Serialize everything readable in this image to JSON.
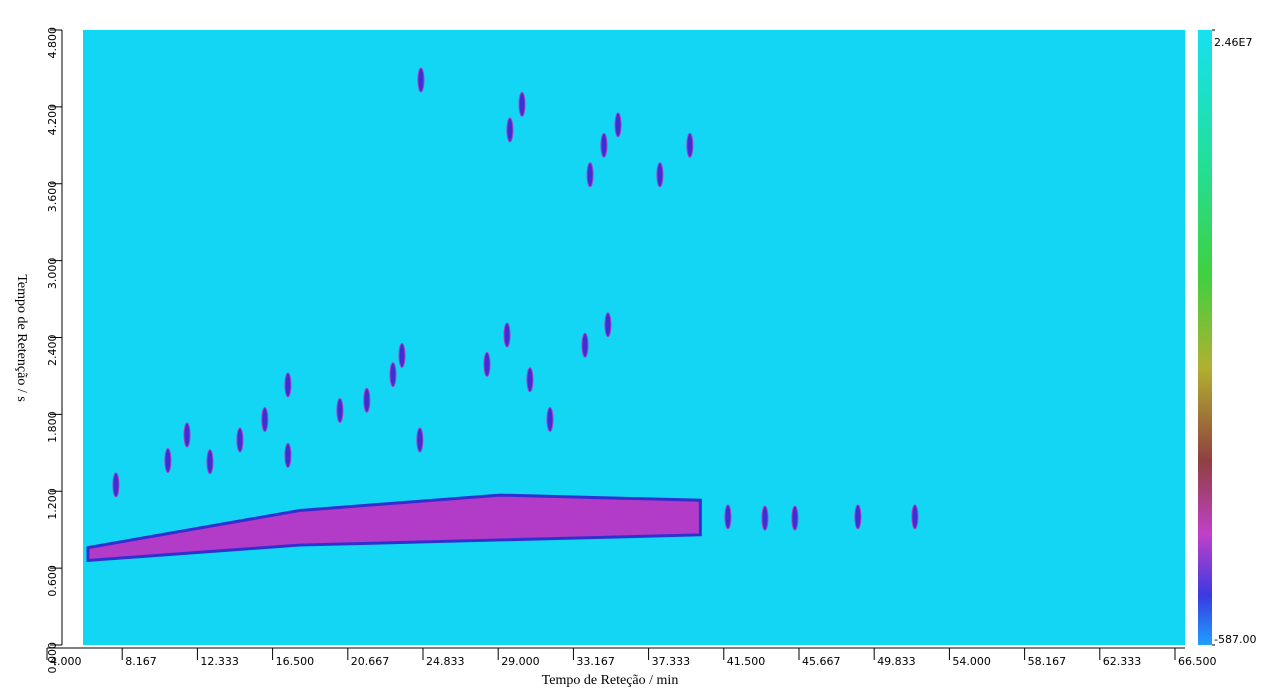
{
  "chart_data": {
    "type": "contour2d",
    "xlabel": "Tempo de Reteção / min",
    "ylabel": "Tempo de Retenção / s",
    "xlim": [
      4.0,
      66.5
    ],
    "xticks": [
      {
        "value": 4.0,
        "label": "4.000"
      },
      {
        "value": 8.167,
        "label": "8.167"
      },
      {
        "value": 12.333,
        "label": "12.333"
      },
      {
        "value": 16.5,
        "label": "16.500"
      },
      {
        "value": 20.667,
        "label": "20.667"
      },
      {
        "value": 24.833,
        "label": "24.833"
      },
      {
        "value": 29.0,
        "label": "29.000"
      },
      {
        "value": 33.167,
        "label": "33.167"
      },
      {
        "value": 37.333,
        "label": "37.333"
      },
      {
        "value": 41.5,
        "label": "41.500"
      },
      {
        "value": 45.667,
        "label": "45.667"
      },
      {
        "value": 49.833,
        "label": "49.833"
      },
      {
        "value": 54.0,
        "label": "54.000"
      },
      {
        "value": 58.167,
        "label": "58.167"
      },
      {
        "value": 62.333,
        "label": "62.333"
      },
      {
        "value": 66.5,
        "label": "66.500"
      }
    ],
    "ylim": [
      0,
      4.8
    ],
    "yticks": [
      {
        "value": 0,
        "label": "0.000"
      },
      {
        "value": 0.6,
        "label": "0.600"
      },
      {
        "value": 1.2,
        "label": "1.200"
      },
      {
        "value": 1.8,
        "label": "1.800"
      },
      {
        "value": 2.4,
        "label": "2.400"
      },
      {
        "value": 3.0,
        "label": "3.000"
      },
      {
        "value": 3.6,
        "label": "3.600"
      },
      {
        "value": 4.2,
        "label": "4.200"
      },
      {
        "value": 4.8,
        "label": "4.800"
      }
    ],
    "colorbar": {
      "ticks": [
        {
          "value": -587,
          "label": "-587.00"
        },
        {
          "value": 24600000,
          "label": "2.46E7"
        }
      ]
    },
    "band": {
      "color": "#b23cc8",
      "x": [
        6.27,
        18.0,
        29.1,
        40.2
      ],
      "lower": [
        0.66,
        0.78,
        0.82,
        0.86
      ],
      "upper": [
        0.76,
        1.05,
        1.17,
        1.13
      ]
    },
    "peaks": {
      "color": "#3b30d6",
      "x": [
        24.72,
        30.32,
        29.65,
        34.86,
        34.09,
        35.64,
        29.49,
        23.67,
        23.17,
        28.38,
        17.35,
        16.07,
        14.69,
        11.76,
        10.7,
        7.82,
        13.03,
        17.35,
        20.23,
        21.72,
        24.66,
        30.76,
        31.87,
        35.08,
        33.81,
        37.96,
        39.62,
        41.73,
        43.78,
        45.44,
        48.93,
        52.09
      ],
      "y": [
        4.41,
        4.22,
        4.02,
        3.9,
        3.67,
        4.06,
        2.42,
        2.26,
        2.11,
        2.19,
        2.03,
        1.76,
        1.6,
        1.64,
        1.44,
        1.25,
        1.43,
        1.48,
        1.83,
        1.91,
        1.6,
        2.07,
        1.76,
        2.5,
        2.34,
        3.67,
        3.9,
        1.0,
        0.99,
        0.99,
        1.0,
        1.0
      ]
    }
  }
}
